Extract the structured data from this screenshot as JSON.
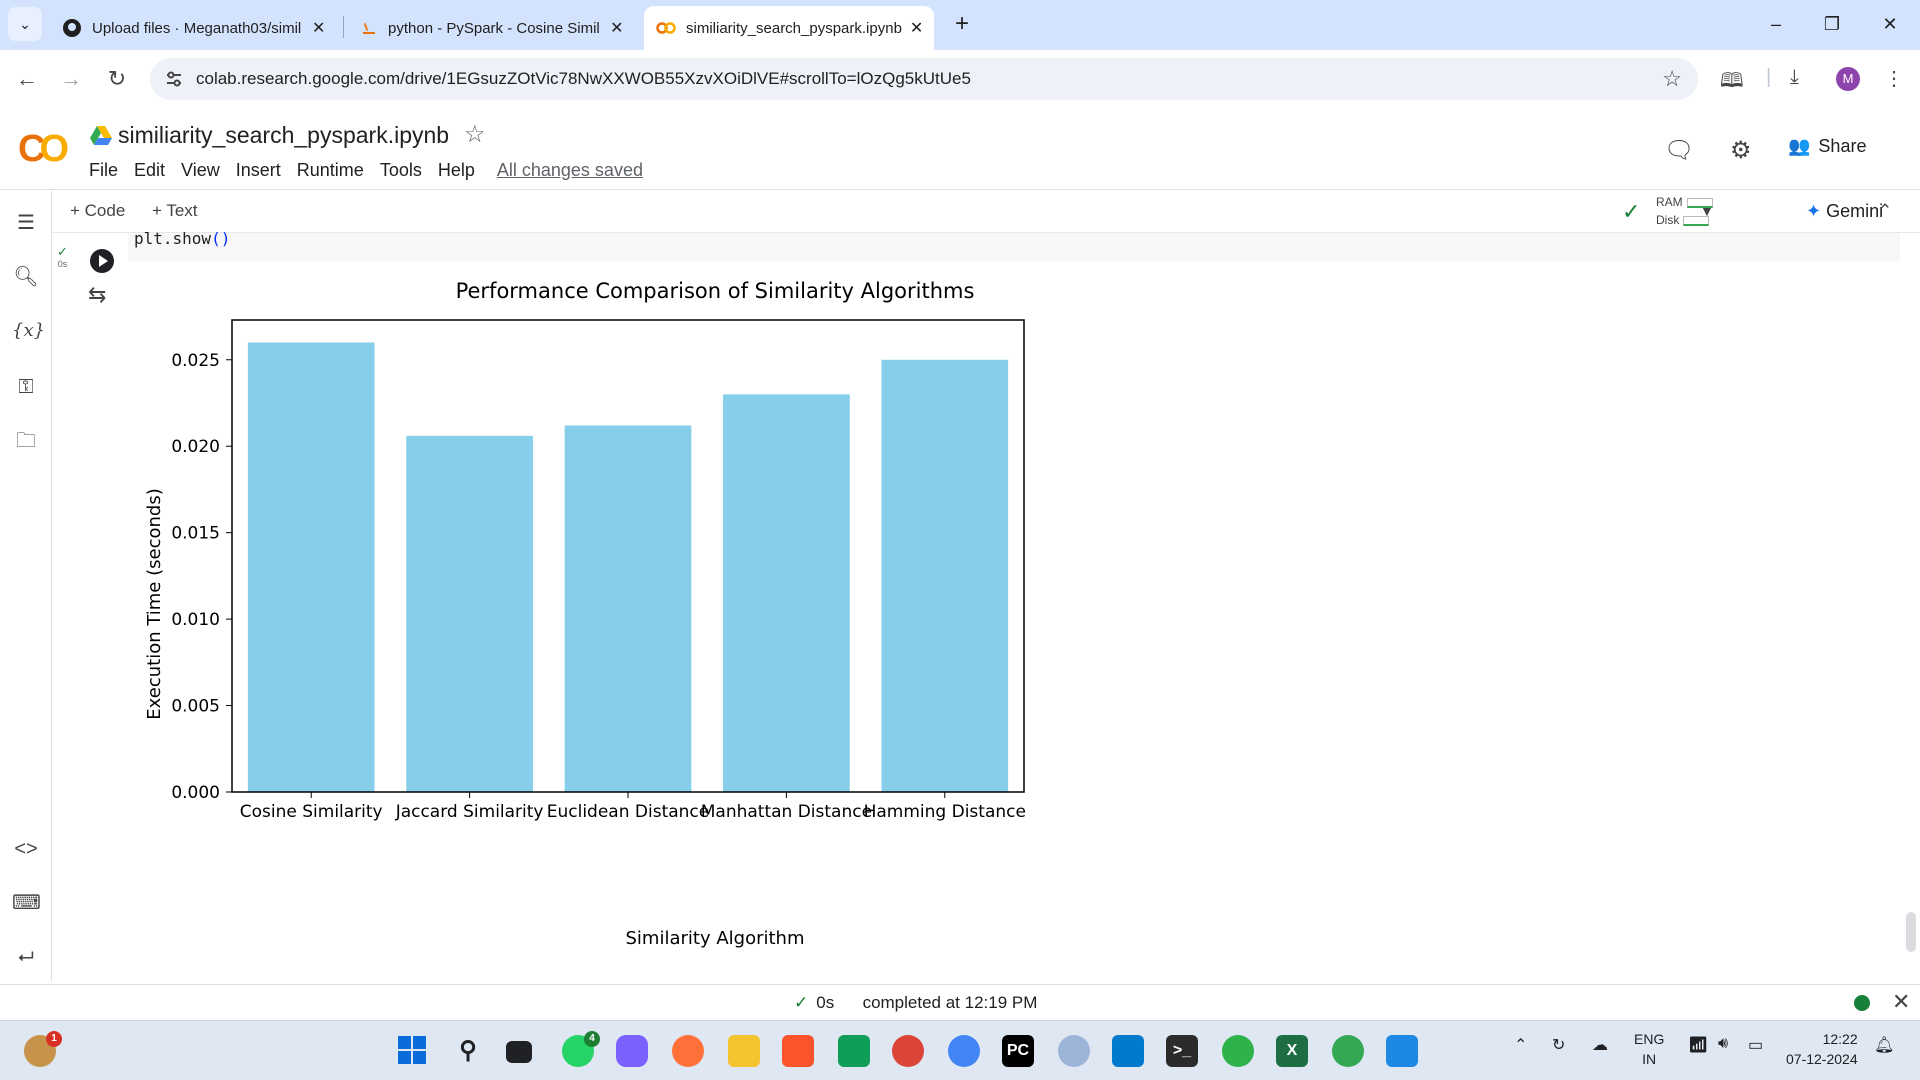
{
  "browser": {
    "tabs": [
      {
        "title": "Upload files · Meganath03/simil",
        "icon": "github-icon"
      },
      {
        "title": "python - PySpark - Cosine Simil",
        "icon": "stackoverflow-icon"
      },
      {
        "title": "similiarity_search_pyspark.ipynb",
        "icon": "colab-icon",
        "active": true
      }
    ],
    "url": "colab.research.google.com/drive/1EGsuzZOtVic78NwXXWOB55XzvXOiDlVE#scrollTo=lOzQg5kUtUe5",
    "profile_initial": "M"
  },
  "colab": {
    "logo": "CO",
    "notebook_title": "similiarity_search_pyspark.ipynb",
    "menu": [
      "File",
      "Edit",
      "View",
      "Insert",
      "Runtime",
      "Tools",
      "Help"
    ],
    "save_status": "All changes saved",
    "share_label": "Share",
    "add_code": "+ Code",
    "add_text": "+ Text",
    "ram_label": "RAM",
    "disk_label": "Disk",
    "gemini_label": "Gemini"
  },
  "cell": {
    "code_fn": "plt.show",
    "code_parens": "()",
    "exec_time": "0s"
  },
  "chart_data": {
    "type": "bar",
    "title": "Performance Comparison of Similarity Algorithms",
    "xlabel": "Similarity Algorithm",
    "ylabel": "Execution Time (seconds)",
    "categories": [
      "Cosine Similarity",
      "Jaccard Similarity",
      "Euclidean Distance",
      "Manhattan Distance",
      "Hamming Distance"
    ],
    "values": [
      0.026,
      0.0206,
      0.0212,
      0.023,
      0.025
    ],
    "yticks": [
      0.0,
      0.005,
      0.01,
      0.015,
      0.02,
      0.025
    ],
    "ytick_labels": [
      "0.000",
      "0.005",
      "0.010",
      "0.015",
      "0.020",
      "0.025"
    ],
    "ylim": [
      0,
      0.0273
    ],
    "bar_color": "#87ceeb",
    "grid": false
  },
  "status": {
    "exec_time": "0s",
    "message": "completed at 12:19 PM"
  },
  "taskbar": {
    "lang_line1": "ENG",
    "lang_line2": "IN",
    "time": "12:22",
    "date": "07-12-2024",
    "whatsapp_badge": "4",
    "notif_badge": "1"
  }
}
